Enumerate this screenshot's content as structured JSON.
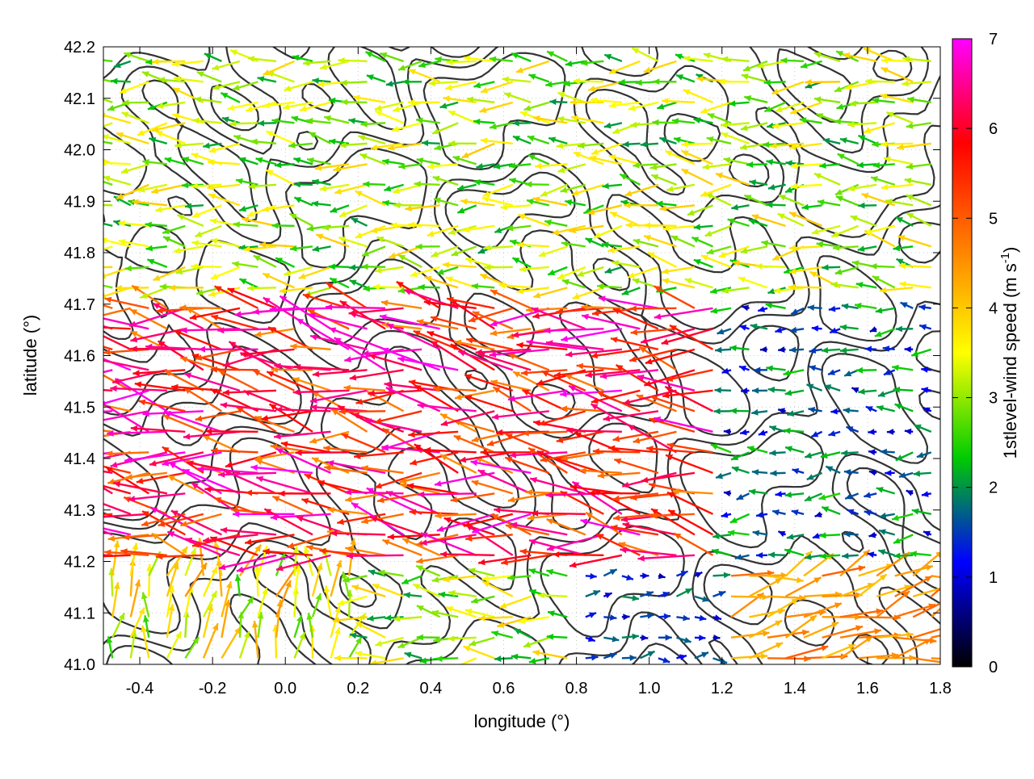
{
  "chart_data": {
    "type": "vector-field",
    "xlabel": "longitude (°)",
    "ylabel": "latitude (°)",
    "xlim": [
      -0.5,
      1.8
    ],
    "ylim": [
      41.0,
      42.2
    ],
    "xticks": [
      "-0.4",
      "-0.2",
      "0.0",
      "0.2",
      "0.4",
      "0.6",
      "0.8",
      "1.0",
      "1.2",
      "1.4",
      "1.6",
      "1.8"
    ],
    "yticks": [
      "41.0",
      "41.1",
      "41.2",
      "41.3",
      "41.4",
      "41.5",
      "41.6",
      "41.7",
      "41.8",
      "41.9",
      "42.0",
      "42.1",
      "42.2"
    ],
    "grid": true,
    "colorbar": {
      "label": "1stlevel-wind speed (m s",
      "label_sup": "-1",
      "label_end": ")",
      "range": [
        0,
        7
      ],
      "ticks": [
        "0",
        "1",
        "2",
        "3",
        "4",
        "5",
        "6",
        "7"
      ],
      "colors": [
        "#000000",
        "#0000ff",
        "#00cc00",
        "#ffff00",
        "#ff8000",
        "#ff0000",
        "#ff00ff"
      ]
    },
    "overlay": "terrain contour lines",
    "arrow_grid_spacing": [
      0.05,
      0.04
    ],
    "wind_regions": [
      {
        "name": "north-westward flow",
        "lon": [
          -0.5,
          1.8
        ],
        "lat": [
          41.7,
          42.2
        ],
        "u": -2.6,
        "v": 0.1,
        "speed_range": [
          2,
          4
        ]
      },
      {
        "name": "north-west strong jet",
        "lon": [
          -0.5,
          1.2
        ],
        "lat": [
          41.2,
          41.7
        ],
        "u": -4.5,
        "v": 0.6,
        "speed_range": [
          4.5,
          7
        ]
      },
      {
        "name": "weak flow east",
        "lon": [
          1.2,
          1.8
        ],
        "lat": [
          41.2,
          41.7
        ],
        "u": -1.5,
        "v": 0.0,
        "speed_range": [
          0.8,
          2.5
        ]
      },
      {
        "name": "south-west convergence",
        "lon": [
          -0.5,
          0.2
        ],
        "lat": [
          41.0,
          41.2
        ],
        "u": 0.3,
        "v": 1.6,
        "speed_range": [
          2.5,
          4.5
        ]
      },
      {
        "name": "south-east weak eastward",
        "lon": [
          0.8,
          1.2
        ],
        "lat": [
          41.0,
          41.2
        ],
        "u": 1.2,
        "v": 0.1,
        "speed_range": [
          0.8,
          2
        ]
      },
      {
        "name": "south-east coastal flow",
        "lon": [
          1.2,
          1.8
        ],
        "lat": [
          41.0,
          41.2
        ],
        "u": 3.8,
        "v": 1.2,
        "speed_range": [
          4,
          5
        ]
      }
    ]
  }
}
